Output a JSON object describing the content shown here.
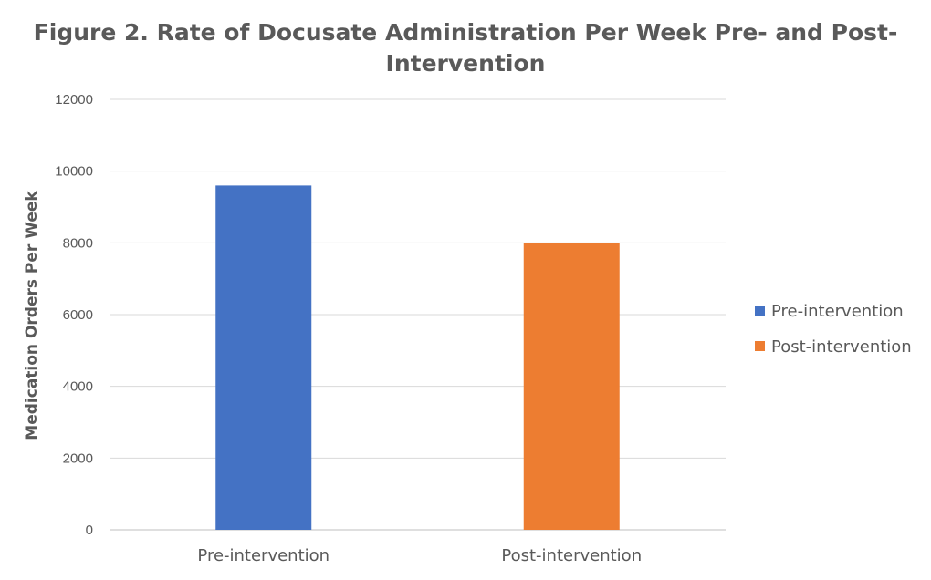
{
  "chart_data": {
    "type": "bar",
    "title_lines": [
      "Figure 2. Rate of Docusate Administration Per Week Pre- and Post-",
      "Intervention"
    ],
    "xlabel": "",
    "ylabel": "Medication Orders Per Week",
    "categories": [
      "Pre-intervention",
      "Post-intervention"
    ],
    "values": [
      9600,
      8000
    ],
    "series_colors": [
      "#4472c4",
      "#ed7d31"
    ],
    "legend": [
      {
        "label": "Pre-intervention",
        "color": "#4472c4"
      },
      {
        "label": "Post-intervention",
        "color": "#ed7d31"
      }
    ],
    "legend_position": "right",
    "ylim": [
      0,
      12000
    ],
    "yticks": [
      0,
      2000,
      4000,
      6000,
      8000,
      10000,
      12000
    ],
    "ytick_labels": [
      "0",
      "2000",
      "4000",
      "6000",
      "8000",
      "10000",
      "12000"
    ],
    "grid": true
  }
}
